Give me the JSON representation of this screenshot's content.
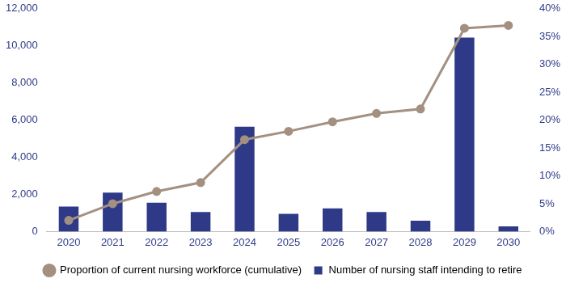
{
  "chart_data": {
    "type": "bar",
    "categories": [
      "2020",
      "2021",
      "2022",
      "2023",
      "2024",
      "2025",
      "2026",
      "2027",
      "2028",
      "2029",
      "2030"
    ],
    "series": [
      {
        "name": "Number of nursing staff intending to retire",
        "type": "bar",
        "color": "#2e3a87",
        "values": [
          1350,
          2100,
          1550,
          1050,
          5650,
          950,
          1250,
          1050,
          580,
          10450,
          280
        ]
      },
      {
        "name": "Proportion of current nursing workforce (cumulative)",
        "type": "line",
        "color": "#a39081",
        "axis": "y2",
        "marker": "circle",
        "values": [
          2,
          5,
          7.2,
          8.8,
          16.5,
          18,
          19.7,
          21.2,
          22,
          36.5,
          37
        ]
      }
    ],
    "ylim": [
      0,
      12000
    ],
    "yticks": [
      0,
      {
        "value": 2000,
        "label": "2,000"
      },
      {
        "value": 4000,
        "label": "4,000"
      },
      {
        "value": 6000,
        "label": "6,000"
      },
      {
        "value": 8000,
        "label": "8,000"
      },
      {
        "value": 10000,
        "label": "10,000"
      },
      {
        "value": 12000,
        "label": "12,000"
      }
    ],
    "y2lim": [
      0,
      40
    ],
    "y2ticks": [
      {
        "value": 0,
        "label": "0%"
      },
      {
        "value": 5,
        "label": "5%"
      },
      {
        "value": 10,
        "label": "10%"
      },
      {
        "value": 15,
        "label": "15%"
      },
      {
        "value": 20,
        "label": "20%"
      },
      {
        "value": 25,
        "label": "25%"
      },
      {
        "value": 30,
        "label": "30%"
      },
      {
        "value": 35,
        "label": "35%"
      },
      {
        "value": 40,
        "label": "40%"
      }
    ],
    "grid": false,
    "legend": "bottom"
  }
}
